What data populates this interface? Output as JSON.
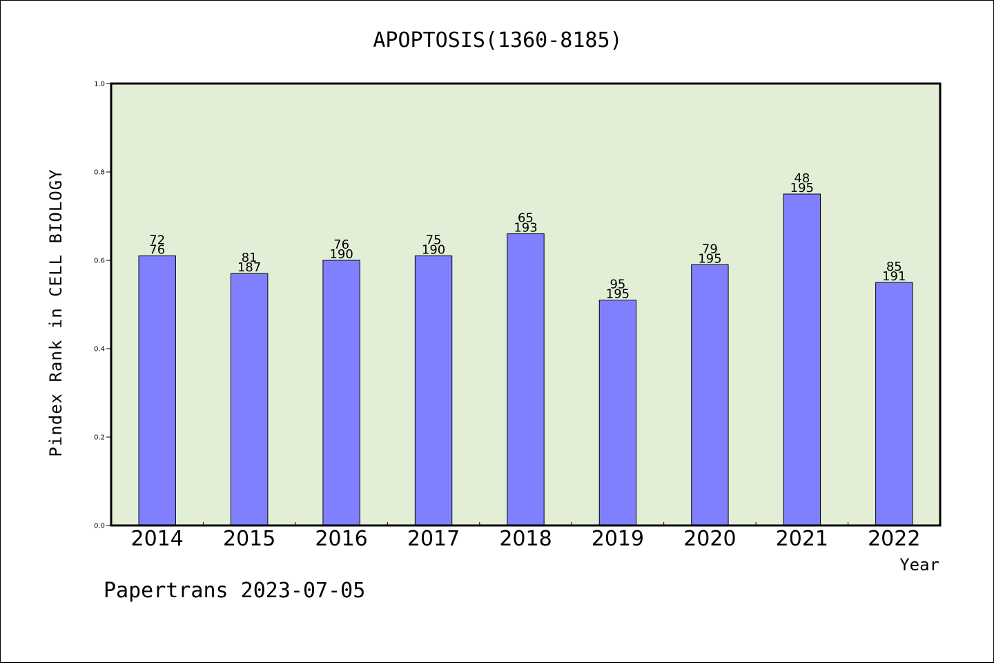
{
  "chart_data": {
    "type": "bar",
    "title": "APOPTOSIS(1360-8185)",
    "xlabel": "Year",
    "ylabel": "Pindex Rank in CELL BIOLOGY",
    "categories": [
      "2014",
      "2015",
      "2016",
      "2017",
      "2018",
      "2019",
      "2020",
      "2021",
      "2022"
    ],
    "values": [
      0.61,
      0.57,
      0.6,
      0.61,
      0.66,
      0.51,
      0.59,
      0.75,
      0.55
    ],
    "bar_labels_top": [
      "72",
      "81",
      "76",
      "75",
      "65",
      "95",
      "79",
      "48",
      "85"
    ],
    "bar_labels_bottom": [
      "76",
      "187",
      "190",
      "190",
      "193",
      "195",
      "195",
      "195",
      "191"
    ],
    "ylim": [
      0,
      1.0
    ],
    "yticks": [
      "0.0",
      "0.2",
      "0.4",
      "0.6",
      "0.8",
      "1.0"
    ],
    "grid": false,
    "colors": {
      "bar": "#8080ff",
      "plot_background": "#e2efd6",
      "bar_edge": "#000000"
    }
  },
  "footer": "Papertrans 2023-07-05"
}
